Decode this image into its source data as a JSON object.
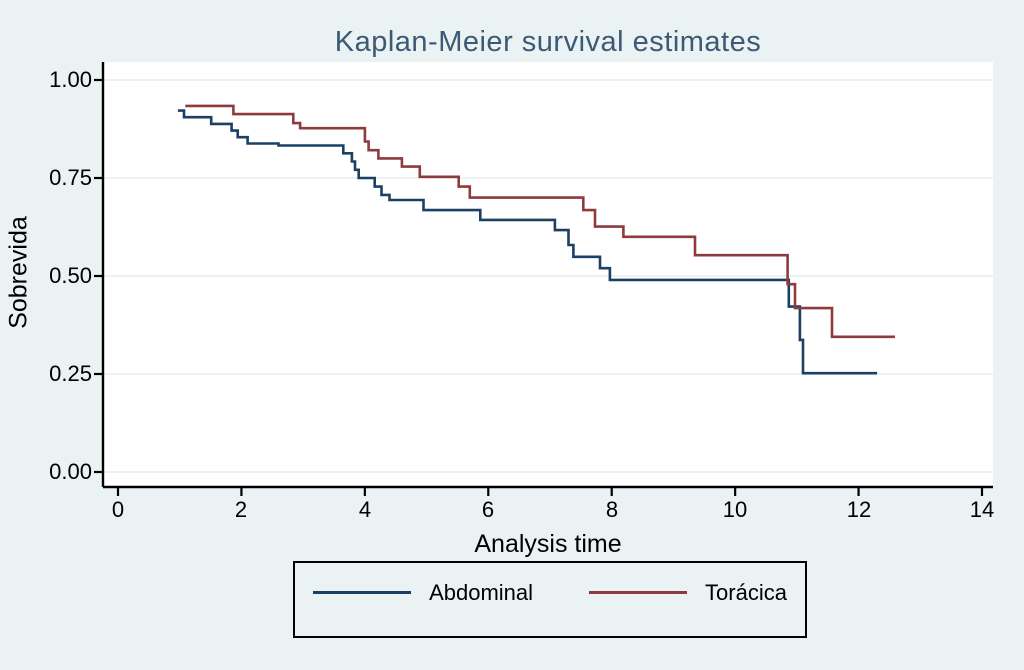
{
  "page": {
    "background_color": "#eaf2f3"
  },
  "chart_data": {
    "type": "line",
    "variant": "kaplan-meier-step",
    "title": "Kaplan-Meier survival estimates",
    "title_color": "#3d5a74",
    "xlabel": "Analysis time",
    "ylabel": "Sobrevida",
    "xlim": [
      0,
      14
    ],
    "ylim": [
      0.0,
      1.0
    ],
    "xticks": [
      0,
      2,
      4,
      6,
      8,
      10,
      12,
      14
    ],
    "xtick_labels": [
      "0",
      "2",
      "4",
      "6",
      "8",
      "10",
      "12",
      "14"
    ],
    "yticks": [
      0,
      0.25,
      0.5,
      0.75,
      1
    ],
    "ytick_labels": [
      "0.00",
      "0.25",
      "0.50",
      "0.75",
      "1.00"
    ],
    "grid": true,
    "grid_color": "#e4edf0",
    "plot_background": "#ffffff",
    "axis_color": "#000000",
    "legend": {
      "position": "bottom-outside",
      "border_color": "#000000"
    },
    "series": [
      {
        "name": "Abdominal",
        "color": "#1b4064",
        "points": [
          [
            0.97,
            0.922
          ],
          [
            1.07,
            0.905
          ],
          [
            1.51,
            0.888
          ],
          [
            1.84,
            0.871
          ],
          [
            1.94,
            0.854
          ],
          [
            2.1,
            0.838
          ],
          [
            2.6,
            0.833
          ],
          [
            3.65,
            0.813
          ],
          [
            3.79,
            0.792
          ],
          [
            3.84,
            0.771
          ],
          [
            3.9,
            0.75
          ],
          [
            4.16,
            0.728
          ],
          [
            4.27,
            0.707
          ],
          [
            4.4,
            0.694
          ],
          [
            4.95,
            0.668
          ],
          [
            5.87,
            0.643
          ],
          [
            7.08,
            0.617
          ],
          [
            7.3,
            0.579
          ],
          [
            7.38,
            0.549
          ],
          [
            7.81,
            0.52
          ],
          [
            7.97,
            0.49
          ],
          [
            10.87,
            0.422
          ],
          [
            11.05,
            0.337
          ],
          [
            11.1,
            0.252
          ],
          [
            12.3,
            0.252
          ]
        ]
      },
      {
        "name": "Torácica",
        "color": "#8f3a3d",
        "points": [
          [
            1.09,
            0.934
          ],
          [
            1.87,
            0.913
          ],
          [
            2.84,
            0.89
          ],
          [
            2.95,
            0.877
          ],
          [
            4.0,
            0.843
          ],
          [
            4.06,
            0.821
          ],
          [
            4.22,
            0.8
          ],
          [
            4.6,
            0.779
          ],
          [
            4.89,
            0.753
          ],
          [
            5.52,
            0.728
          ],
          [
            5.7,
            0.7
          ],
          [
            7.54,
            0.668
          ],
          [
            7.73,
            0.626
          ],
          [
            8.19,
            0.6
          ],
          [
            9.35,
            0.553
          ],
          [
            10.85,
            0.479
          ],
          [
            10.97,
            0.418
          ],
          [
            11.57,
            0.345
          ],
          [
            12.59,
            0.345
          ]
        ]
      }
    ]
  }
}
